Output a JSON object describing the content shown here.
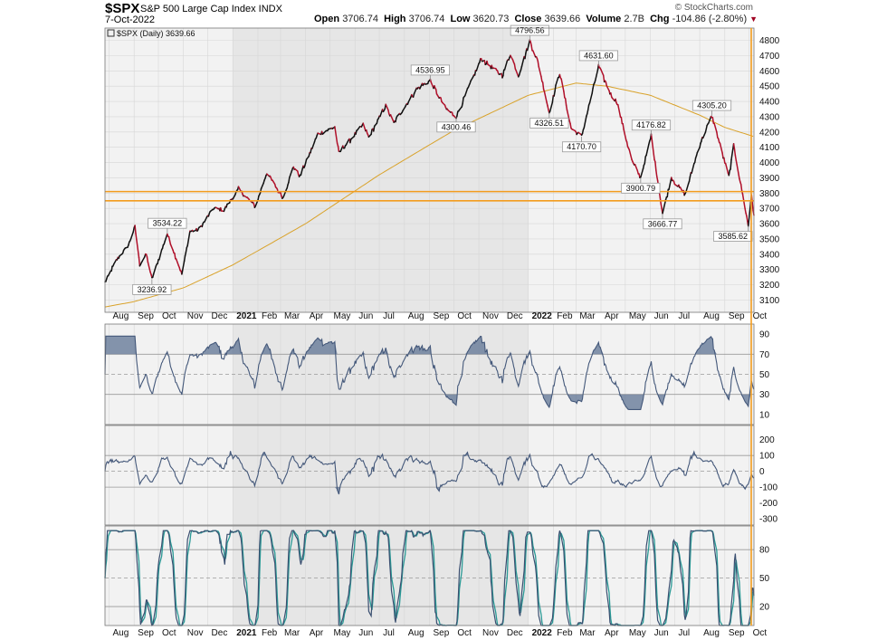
{
  "header": {
    "symbol": "$SPX",
    "name": "S&P 500 Large Cap Index INDX",
    "date": "7-Oct-2022",
    "watermark": "© StockCharts.com",
    "open_label": "Open",
    "open": "3706.74",
    "high_label": "High",
    "high": "3706.74",
    "low_label": "Low",
    "low": "3620.73",
    "close_label": "Close",
    "close": "3639.66",
    "volume_label": "Volume",
    "volume": "2.7B",
    "chg_label": "Chg",
    "chg": "-104.86 (-2.80%)"
  },
  "colors": {
    "up": "#111111",
    "down": "#b0102a",
    "ma": "#d9a22a",
    "hline": "#f39c1e",
    "panel_bg": "#f2f2f2",
    "band_bg": "#e6e6e6",
    "ind_line": "#44587a",
    "ind_fill": "#667a99",
    "stoch_k": "#3a4f70",
    "stoch_d": "#2a9a96"
  },
  "chart_data": [
    {
      "type": "line",
      "legend": "$SPX (Daily) 3639.66",
      "x_labels": [
        "Aug",
        "Sep",
        "Oct",
        "Nov",
        "Dec",
        "2021",
        "Feb",
        "Mar",
        "Apr",
        "May",
        "Jun",
        "Jul",
        "Aug",
        "Sep",
        "Oct",
        "Nov",
        "Dec",
        "2022",
        "Feb",
        "Mar",
        "Apr",
        "May",
        "Jun",
        "Jul",
        "Aug",
        "Sep",
        "Oct"
      ],
      "y_ticks": [
        3100,
        3200,
        3300,
        3400,
        3500,
        3600,
        3700,
        3800,
        3900,
        4000,
        4100,
        4200,
        4300,
        4400,
        4500,
        4600,
        4700,
        4800
      ],
      "ylim": [
        3020,
        4880
      ],
      "anchors": [
        [
          "2020-07-27",
          3215
        ],
        [
          "2020-08-10",
          3360
        ],
        [
          "2020-08-25",
          3460
        ],
        [
          "2020-09-02",
          3580
        ],
        [
          "2020-09-08",
          3330
        ],
        [
          "2020-09-16",
          3400
        ],
        [
          "2020-09-23",
          3236.92
        ],
        [
          "2020-10-12",
          3534.22
        ],
        [
          "2020-10-30",
          3270
        ],
        [
          "2020-11-09",
          3550
        ],
        [
          "2020-11-20",
          3560
        ],
        [
          "2020-12-08",
          3700
        ],
        [
          "2020-12-21",
          3690
        ],
        [
          "2021-01-08",
          3824
        ],
        [
          "2021-01-29",
          3714
        ],
        [
          "2021-02-12",
          3934
        ],
        [
          "2021-03-04",
          3768
        ],
        [
          "2021-03-17",
          3974
        ],
        [
          "2021-03-25",
          3909
        ],
        [
          "2021-04-16",
          4185
        ],
        [
          "2021-05-07",
          4232
        ],
        [
          "2021-05-12",
          4063
        ],
        [
          "2021-06-11",
          4247
        ],
        [
          "2021-06-18",
          4166
        ],
        [
          "2021-07-09",
          4370
        ],
        [
          "2021-07-19",
          4258
        ],
        [
          "2021-08-16",
          4480
        ],
        [
          "2021-09-02",
          4536.95
        ],
        [
          "2021-09-21",
          4354
        ],
        [
          "2021-10-04",
          4300.46
        ],
        [
          "2021-11-04",
          4680
        ],
        [
          "2021-11-30",
          4567
        ],
        [
          "2021-12-10",
          4712
        ],
        [
          "2021-12-20",
          4568
        ],
        [
          "2022-01-03",
          4796.56
        ],
        [
          "2022-01-13",
          4659
        ],
        [
          "2022-01-27",
          4326.51
        ],
        [
          "2022-02-09",
          4587
        ],
        [
          "2022-02-23",
          4225
        ],
        [
          "2022-03-08",
          4170.7
        ],
        [
          "2022-03-29",
          4631.6
        ],
        [
          "2022-04-13",
          4446
        ],
        [
          "2022-04-21",
          4393
        ],
        [
          "2022-05-02",
          4155
        ],
        [
          "2022-05-10",
          4001
        ],
        [
          "2022-05-20",
          3900.79
        ],
        [
          "2022-05-31",
          4132
        ],
        [
          "2022-06-02",
          4176.82
        ],
        [
          "2022-06-16",
          3666.77
        ],
        [
          "2022-06-27",
          3900
        ],
        [
          "2022-07-14",
          3790
        ],
        [
          "2022-08-01",
          4118
        ],
        [
          "2022-08-16",
          4305.2
        ],
        [
          "2022-09-06",
          3908
        ],
        [
          "2022-09-12",
          4110
        ],
        [
          "2022-09-30",
          3585.62
        ],
        [
          "2022-10-04",
          3790
        ],
        [
          "2022-10-07",
          3639.66
        ]
      ],
      "ma_anchors": [
        [
          "2020-07-27",
          3055
        ],
        [
          "2020-09-01",
          3090
        ],
        [
          "2020-11-01",
          3180
        ],
        [
          "2021-01-01",
          3330
        ],
        [
          "2021-04-01",
          3600
        ],
        [
          "2021-07-01",
          3920
        ],
        [
          "2021-10-01",
          4210
        ],
        [
          "2022-01-01",
          4440
        ],
        [
          "2022-03-01",
          4520
        ],
        [
          "2022-04-08",
          4500
        ],
        [
          "2022-06-01",
          4440
        ],
        [
          "2022-08-01",
          4310
        ],
        [
          "2022-09-01",
          4230
        ],
        [
          "2022-10-07",
          4170
        ]
      ],
      "annotations": [
        {
          "text": "3534.22",
          "date": "2020-10-12",
          "value": 3534.22,
          "pos": "above"
        },
        {
          "text": "3236.92",
          "date": "2020-09-23",
          "value": 3236.92,
          "pos": "below"
        },
        {
          "text": "4536.95",
          "date": "2021-09-02",
          "value": 4536.95,
          "pos": "above"
        },
        {
          "text": "4300.46",
          "date": "2021-10-04",
          "value": 4300.46,
          "pos": "below"
        },
        {
          "text": "4796.56",
          "date": "2022-01-03",
          "value": 4796.56,
          "pos": "above"
        },
        {
          "text": "4326.51",
          "date": "2022-01-27",
          "value": 4326.51,
          "pos": "below"
        },
        {
          "text": "4631.60",
          "date": "2022-03-29",
          "value": 4631.6,
          "pos": "above"
        },
        {
          "text": "4170.70",
          "date": "2022-03-08",
          "value": 4170.7,
          "pos": "below"
        },
        {
          "text": "4176.82",
          "date": "2022-06-02",
          "value": 4176.82,
          "pos": "above"
        },
        {
          "text": "3900.79",
          "date": "2022-05-20",
          "value": 3900.79,
          "pos": "below"
        },
        {
          "text": "3666.77",
          "date": "2022-06-16",
          "value": 3666.77,
          "pos": "below"
        },
        {
          "text": "4305.20",
          "date": "2022-08-16",
          "value": 4305.2,
          "pos": "above"
        },
        {
          "text": "3585.62",
          "date": "2022-09-30",
          "value": 3585.62,
          "pos": "below"
        }
      ],
      "hlines": [
        3810,
        3750
      ]
    },
    {
      "type": "line",
      "y_ticks": [
        10,
        30,
        50,
        70,
        90
      ],
      "ylim": [
        0,
        100
      ],
      "ref_levels": [
        30,
        50,
        70
      ]
    },
    {
      "type": "area",
      "y_ticks": [
        -300,
        -200,
        -100,
        0,
        100,
        200
      ],
      "ylim": [
        -340,
        290
      ],
      "ref_levels": [
        -100,
        0,
        100
      ]
    },
    {
      "type": "line",
      "y_ticks": [
        20,
        50,
        80
      ],
      "ylim": [
        0,
        105
      ],
      "ref_levels": [
        20,
        50,
        80
      ]
    }
  ]
}
